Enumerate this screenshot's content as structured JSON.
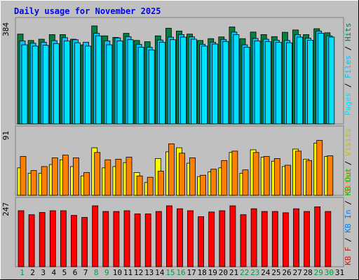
{
  "chart_data": [
    {
      "type": "bar",
      "panel": "hits-files-pages",
      "title": "Daily usage for November 2025",
      "ylabel_parts": [
        "Pages",
        "Files",
        "Hits"
      ],
      "ytick": "384",
      "categories": [
        "1",
        "2",
        "3",
        "4",
        "5",
        "6",
        "7",
        "8",
        "9",
        "10",
        "11",
        "12",
        "13",
        "14",
        "15",
        "16",
        "17",
        "18",
        "19",
        "20",
        "21",
        "22",
        "23",
        "24",
        "25",
        "26",
        "27",
        "28",
        "29",
        "30",
        "31"
      ],
      "ylim": [
        0,
        384
      ],
      "series": [
        {
          "name": "Hits",
          "color": "#008040",
          "values": [
            352,
            327,
            332,
            350,
            350,
            332,
            310,
            384,
            345,
            339,
            355,
            327,
            322,
            345,
            375,
            364,
            352,
            327,
            334,
            341,
            380,
            334,
            360,
            350,
            342,
            359,
            368,
            350,
            373,
            357,
            0
          ]
        },
        {
          "name": "Files",
          "color": "#00C0FF",
          "values": [
            325,
            316,
            320,
            326,
            338,
            330,
            320,
            355,
            325,
            337,
            342,
            312,
            300,
            329,
            340,
            350,
            341,
            312,
            320,
            331,
            360,
            310,
            335,
            332,
            328,
            327,
            350,
            336,
            364,
            345,
            0
          ]
        },
        {
          "name": "Pages",
          "color": "#00E0FF",
          "values": [
            310,
            305,
            308,
            315,
            325,
            318,
            305,
            345,
            310,
            325,
            330,
            300,
            290,
            320,
            330,
            340,
            332,
            305,
            313,
            323,
            350,
            300,
            325,
            322,
            320,
            318,
            340,
            328,
            355,
            340,
            0
          ]
        }
      ]
    },
    {
      "type": "bar",
      "panel": "visits-sites",
      "ylabel_parts": [
        "Sites",
        "Visits"
      ],
      "ytick": "91",
      "ylim": [
        0,
        91
      ],
      "series": [
        {
          "name": "Visits",
          "color": "#FFFF00",
          "values": [
            41,
            33,
            33,
            46,
            53,
            43,
            29,
            71,
            41,
            43,
            49,
            34,
            19,
            55,
            65,
            71,
            48,
            28,
            35,
            41,
            64,
            33,
            68,
            57,
            51,
            43,
            69,
            54,
            78,
            58,
            0
          ]
        },
        {
          "name": "Sites",
          "color": "#FF8000",
          "values": [
            58,
            37,
            43,
            56,
            60,
            56,
            34,
            64,
            53,
            54,
            57,
            29,
            27,
            36,
            77,
            63,
            56,
            30,
            39,
            52,
            66,
            38,
            64,
            58,
            55,
            45,
            66,
            52,
            82,
            59,
            0
          ]
        }
      ]
    },
    {
      "type": "bar",
      "panel": "kbytes",
      "ylabel_parts": [
        "KB F",
        "KB In",
        "KB Out"
      ],
      "ytick": "247",
      "ylim": [
        0,
        247
      ],
      "series": [
        {
          "name": "KB F",
          "color": "#FF0000",
          "values": [
            227,
            211,
            220,
            227,
            227,
            208,
            200,
            247,
            224,
            224,
            227,
            214,
            214,
            224,
            247,
            235,
            227,
            203,
            222,
            227,
            247,
            211,
            235,
            224,
            224,
            219,
            235,
            224,
            243,
            224,
            0
          ]
        }
      ]
    }
  ],
  "colors": {
    "background": "#C0C0C0",
    "plot_bg": "#C0C0C0",
    "title": "#0000FF",
    "pages": "#00E0FF",
    "files": "#00C0FF",
    "hits": "#008040",
    "visits": "#FFFF00",
    "sites": "#FF8000",
    "kbytes": "#FF0000",
    "kb_in": "#0080FF",
    "kb_out": "#00C000",
    "weekend_label": "#00A040",
    "weekday_label": "#000000"
  },
  "weekend_days": [
    1,
    8,
    9,
    15,
    16,
    22,
    23,
    29,
    30
  ]
}
